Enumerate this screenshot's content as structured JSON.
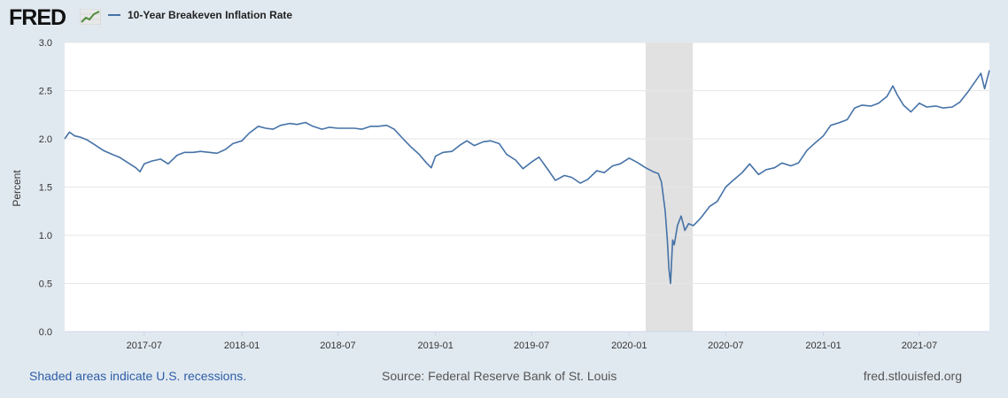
{
  "brand": {
    "logo_text": "FRED",
    "logo_icon": "fred-line-graph-icon"
  },
  "legend": {
    "series_label": "10-Year Breakeven Inflation Rate",
    "color": "#4572a7"
  },
  "footer": {
    "left": "Shaded areas indicate U.S. recessions.",
    "middle": "Source: Federal Reserve Bank of St. Louis",
    "right": "fred.stlouisfed.org"
  },
  "colors": {
    "background": "#e1e9f0",
    "plot_background": "#ffffff",
    "gridline": "#e6e6e6",
    "recession": "#e1e1e1",
    "series": "#4572a7"
  },
  "chart_data": {
    "type": "line",
    "title": "",
    "xlabel": "",
    "ylabel": "Percent",
    "ylim": [
      0,
      3.0
    ],
    "xlim": [
      "2017-02-01",
      "2021-11-10"
    ],
    "yticks": [
      0.0,
      0.5,
      1.0,
      1.5,
      2.0,
      2.5,
      3.0
    ],
    "ytick_labels": [
      "0.0",
      "0.5",
      "1.0",
      "1.5",
      "2.0",
      "2.5",
      "3.0"
    ],
    "xticks": [
      "2017-07-01",
      "2018-01-01",
      "2018-07-01",
      "2019-01-01",
      "2019-07-01",
      "2020-01-01",
      "2020-07-01",
      "2021-01-01",
      "2021-07-01"
    ],
    "xtick_labels": [
      "2017-07",
      "2018-01",
      "2018-07",
      "2019-01",
      "2019-07",
      "2020-01",
      "2020-07",
      "2021-01",
      "2021-07"
    ],
    "grid": true,
    "recessions": [
      {
        "start": "2020-02-01",
        "end": "2020-04-30"
      }
    ],
    "series": [
      {
        "name": "10-Year Breakeven Inflation Rate",
        "x": [
          "2017-02-01",
          "2017-02-10",
          "2017-02-20",
          "2017-03-01",
          "2017-03-15",
          "2017-04-01",
          "2017-04-15",
          "2017-05-01",
          "2017-05-15",
          "2017-06-01",
          "2017-06-15",
          "2017-06-23",
          "2017-07-01",
          "2017-07-15",
          "2017-08-01",
          "2017-08-15",
          "2017-09-01",
          "2017-09-15",
          "2017-10-01",
          "2017-10-15",
          "2017-11-01",
          "2017-11-15",
          "2017-12-01",
          "2017-12-15",
          "2018-01-01",
          "2018-01-15",
          "2018-02-01",
          "2018-02-15",
          "2018-03-01",
          "2018-03-15",
          "2018-04-01",
          "2018-04-15",
          "2018-05-01",
          "2018-05-15",
          "2018-06-01",
          "2018-06-15",
          "2018-07-01",
          "2018-07-15",
          "2018-08-01",
          "2018-08-15",
          "2018-09-01",
          "2018-09-15",
          "2018-10-01",
          "2018-10-15",
          "2018-11-01",
          "2018-11-15",
          "2018-12-01",
          "2018-12-15",
          "2018-12-24",
          "2019-01-01",
          "2019-01-15",
          "2019-02-01",
          "2019-02-15",
          "2019-03-01",
          "2019-03-15",
          "2019-04-01",
          "2019-04-15",
          "2019-05-01",
          "2019-05-15",
          "2019-06-01",
          "2019-06-15",
          "2019-07-01",
          "2019-07-15",
          "2019-08-01",
          "2019-08-15",
          "2019-09-01",
          "2019-09-15",
          "2019-10-01",
          "2019-10-15",
          "2019-11-01",
          "2019-11-15",
          "2019-12-01",
          "2019-12-15",
          "2020-01-01",
          "2020-01-15",
          "2020-02-01",
          "2020-02-15",
          "2020-02-25",
          "2020-03-02",
          "2020-03-09",
          "2020-03-13",
          "2020-03-16",
          "2020-03-19",
          "2020-03-23",
          "2020-03-26",
          "2020-04-01",
          "2020-04-08",
          "2020-04-15",
          "2020-04-22",
          "2020-05-01",
          "2020-05-15",
          "2020-06-01",
          "2020-06-15",
          "2020-07-01",
          "2020-07-15",
          "2020-08-01",
          "2020-08-15",
          "2020-09-01",
          "2020-09-15",
          "2020-10-01",
          "2020-10-15",
          "2020-11-01",
          "2020-11-15",
          "2020-12-01",
          "2020-12-15",
          "2021-01-01",
          "2021-01-15",
          "2021-02-01",
          "2021-02-15",
          "2021-03-01",
          "2021-03-15",
          "2021-04-01",
          "2021-04-15",
          "2021-05-01",
          "2021-05-12",
          "2021-05-20",
          "2021-06-01",
          "2021-06-15",
          "2021-07-01",
          "2021-07-15",
          "2021-08-01",
          "2021-08-15",
          "2021-09-01",
          "2021-09-15",
          "2021-10-01",
          "2021-10-15",
          "2021-10-25",
          "2021-11-01",
          "2021-11-10"
        ],
        "y": [
          2.0,
          2.07,
          2.03,
          2.02,
          1.99,
          1.93,
          1.88,
          1.84,
          1.81,
          1.75,
          1.7,
          1.66,
          1.74,
          1.77,
          1.79,
          1.74,
          1.83,
          1.86,
          1.86,
          1.87,
          1.86,
          1.85,
          1.89,
          1.95,
          1.98,
          2.06,
          2.13,
          2.11,
          2.1,
          2.14,
          2.16,
          2.15,
          2.17,
          2.13,
          2.1,
          2.12,
          2.11,
          2.11,
          2.11,
          2.1,
          2.13,
          2.13,
          2.14,
          2.1,
          2.0,
          1.92,
          1.84,
          1.75,
          1.7,
          1.82,
          1.86,
          1.87,
          1.93,
          1.98,
          1.93,
          1.97,
          1.98,
          1.95,
          1.84,
          1.78,
          1.69,
          1.76,
          1.81,
          1.68,
          1.57,
          1.62,
          1.6,
          1.54,
          1.58,
          1.67,
          1.65,
          1.72,
          1.74,
          1.8,
          1.76,
          1.7,
          1.66,
          1.64,
          1.55,
          1.25,
          0.95,
          0.65,
          0.5,
          0.95,
          0.9,
          1.1,
          1.2,
          1.05,
          1.12,
          1.1,
          1.18,
          1.3,
          1.35,
          1.5,
          1.57,
          1.65,
          1.74,
          1.63,
          1.68,
          1.7,
          1.75,
          1.72,
          1.75,
          1.88,
          1.95,
          2.03,
          2.14,
          2.17,
          2.2,
          2.32,
          2.35,
          2.34,
          2.37,
          2.44,
          2.55,
          2.46,
          2.35,
          2.28,
          2.37,
          2.33,
          2.34,
          2.32,
          2.33,
          2.38,
          2.49,
          2.6,
          2.68,
          2.52,
          2.71
        ]
      }
    ]
  }
}
